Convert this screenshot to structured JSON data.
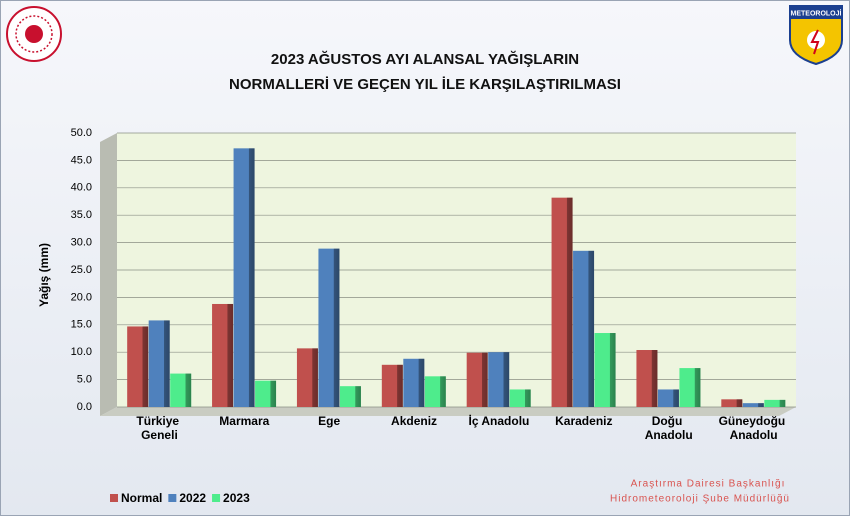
{
  "chart_data": {
    "type": "bar",
    "title": [
      "2023 AĞUSTOS AYI ALANSAL YAĞIŞLARIN",
      "NORMALLERİ VE GEÇEN YIL İLE KARŞILAŞTIRILMASI"
    ],
    "y_label": "Yağış (mm)",
    "categories": [
      "Türkiye Geneli",
      "Marmara",
      "Ege",
      "Akdeniz",
      "İç Anadolu",
      "Karadeniz",
      "Doğu Anadolu",
      "Güneydoğu Anadolu"
    ],
    "series": [
      {
        "name": "Normal",
        "color": "#c0504d",
        "values": [
          14.7,
          18.8,
          10.7,
          7.7,
          9.9,
          38.2,
          10.4,
          1.4
        ]
      },
      {
        "name": "2022",
        "color": "#4f81bd",
        "values": [
          15.8,
          47.2,
          28.9,
          8.8,
          10.0,
          28.5,
          3.2,
          0.7
        ]
      },
      {
        "name": "2023",
        "color": "#4eec8c",
        "values": [
          6.1,
          4.8,
          3.8,
          5.6,
          3.2,
          13.5,
          7.1,
          1.3
        ]
      }
    ],
    "ylim": [
      0,
      50
    ],
    "yticks": [
      {
        "value": 0,
        "label": "0.0"
      },
      {
        "value": 5,
        "label": "5.0"
      },
      {
        "value": 10,
        "label": "10.0"
      },
      {
        "value": 15,
        "label": "15.0"
      },
      {
        "value": 20,
        "label": "20.0"
      },
      {
        "value": 25,
        "label": "25.0"
      },
      {
        "value": 30,
        "label": "30.0"
      },
      {
        "value": 35,
        "label": "35.0"
      },
      {
        "value": 40,
        "label": "40.0"
      },
      {
        "value": 45,
        "label": "45.0"
      },
      {
        "value": 50,
        "label": "50.0"
      }
    ],
    "grid": true,
    "legend": "bottom-left",
    "logo_text": "METEOROLOJİ",
    "footer": [
      "Araştırma Dairesi Başkanlığı",
      "Hidrometeoroloji Şube Müdürlüğü"
    ]
  }
}
